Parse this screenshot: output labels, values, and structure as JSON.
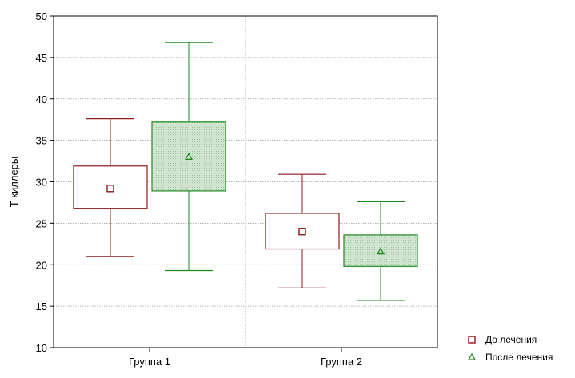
{
  "chart_data": {
    "type": "boxplot",
    "title": "",
    "ylabel": "Т киллеры",
    "xlabel": "",
    "ylim": [
      10,
      50
    ],
    "yticks": [
      10,
      15,
      20,
      25,
      30,
      35,
      40,
      45,
      50
    ],
    "categories": [
      "Группа 1",
      "Группа 2"
    ],
    "grid": true,
    "legend_position": "bottom-right",
    "series": [
      {
        "name": "До лечения",
        "color": "#8b1a1a",
        "fill": "#ffffff",
        "marker": "square",
        "boxes": [
          {
            "min": 21.0,
            "q1": 26.8,
            "center": 29.2,
            "q3": 31.9,
            "max": 37.6
          },
          {
            "min": 17.2,
            "q1": 21.9,
            "center": 24.0,
            "q3": 26.2,
            "max": 30.9
          }
        ]
      },
      {
        "name": "После лечения",
        "color": "#1e8a1e",
        "fill": "#cfe3cf",
        "marker": "triangle",
        "boxes": [
          {
            "min": 19.3,
            "q1": 28.9,
            "center": 33.0,
            "q3": 37.2,
            "max": 46.8
          },
          {
            "min": 15.7,
            "q1": 19.8,
            "center": 21.6,
            "q3": 23.6,
            "max": 27.6
          }
        ]
      }
    ]
  }
}
